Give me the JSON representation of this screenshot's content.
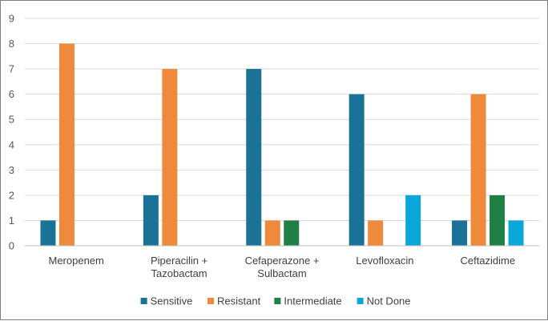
{
  "chart_data": {
    "type": "bar",
    "title": "",
    "xlabel": "",
    "ylabel": "",
    "ylim": [
      0,
      9
    ],
    "yticks": [
      0,
      1,
      2,
      3,
      4,
      5,
      6,
      7,
      8,
      9
    ],
    "grid": true,
    "legend_position": "bottom",
    "categories": [
      [
        "Meropenem"
      ],
      [
        "Piperacilin +",
        "Tazobactam"
      ],
      [
        "Cefaperazone +",
        "Sulbactam"
      ],
      [
        "Levofloxacin"
      ],
      [
        "Ceftazidime"
      ]
    ],
    "series": [
      {
        "name": "Sensitive",
        "color": "#1a7396",
        "values": [
          1,
          2,
          7,
          6,
          1
        ]
      },
      {
        "name": "Resistant",
        "color": "#ef8a3d",
        "values": [
          8,
          7,
          1,
          1,
          6
        ]
      },
      {
        "name": "Intermediate",
        "color": "#1f7f45",
        "values": [
          0,
          0,
          1,
          0,
          2
        ]
      },
      {
        "name": "Not Done",
        "color": "#0aa7d9",
        "values": [
          0,
          0,
          0,
          2,
          1
        ]
      }
    ]
  }
}
